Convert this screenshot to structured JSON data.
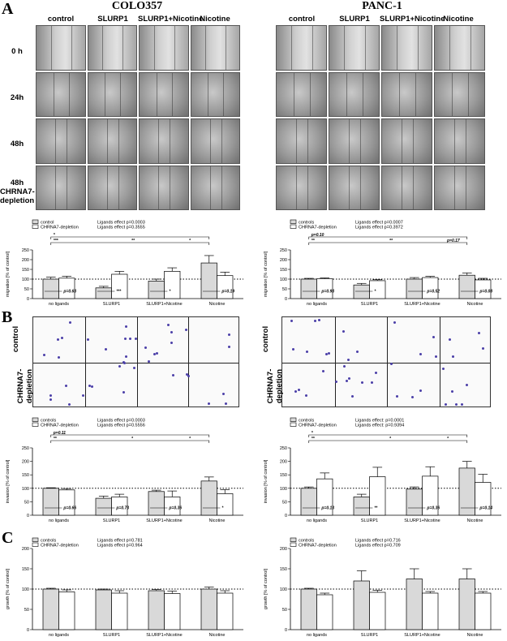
{
  "panels": {
    "a": "A",
    "b": "B",
    "c": "C"
  },
  "a_titles": {
    "left": "COLO357",
    "right": "PANC-1"
  },
  "a_columns": [
    "control",
    "SLURP1",
    "SLURP1+Nicotine",
    "Nicotine"
  ],
  "a_rows": [
    "0 h",
    "24h",
    "48h",
    "48h CHRNA7-depletion"
  ],
  "b_rows": [
    "control",
    "CHRNA7-depletion"
  ],
  "chart_data": [
    {
      "type": "bar",
      "panel": "A",
      "cell_line": "COLO357",
      "ylabel": "migration [% of control]",
      "ylim": [
        0,
        250
      ],
      "yticks": [
        0,
        50,
        100,
        150,
        200,
        250
      ],
      "reference_line": 100,
      "categories": [
        "no ligands",
        "SLURP1",
        "SLURP1+Nicotine",
        "Nicotine"
      ],
      "legend": [
        "control",
        "CHRNA7-depletion"
      ],
      "legend_notes": [
        "Ligands effect p=0.0003",
        "Ligands effect p=0.3555"
      ],
      "series": [
        {
          "name": "control",
          "values": [
            100,
            55,
            90,
            183
          ],
          "errors": [
            10,
            8,
            10,
            38
          ]
        },
        {
          "name": "CHRNA7-depletion",
          "values": [
            105,
            125,
            140,
            118
          ],
          "errors": [
            10,
            15,
            18,
            18
          ]
        }
      ],
      "pair_labels": [
        "p=0.63",
        "***",
        "*",
        "p=0.19"
      ],
      "brackets": [
        {
          "from": 0,
          "to": 3,
          "level": 1,
          "labels": [
            "*"
          ]
        },
        {
          "from": 0,
          "to": 3,
          "level": 2,
          "labels": [
            "***",
            "**",
            "*"
          ]
        }
      ]
    },
    {
      "type": "bar",
      "panel": "A",
      "cell_line": "PANC-1",
      "ylabel": "migration [% of control]",
      "ylim": [
        0,
        250
      ],
      "yticks": [
        0,
        50,
        100,
        150,
        200,
        250
      ],
      "reference_line": 100,
      "categories": [
        "no ligands",
        "SLURP1",
        "SLURP1+Nicotine",
        "Nicotine"
      ],
      "legend": [
        "controls",
        "CHRNA7-depletion"
      ],
      "legend_notes": [
        "Ligands effect p=0.0007",
        "Ligands effect p=0.3972"
      ],
      "series": [
        {
          "name": "controls",
          "values": [
            100,
            70,
            100,
            120
          ],
          "errors": [
            4,
            8,
            8,
            12
          ]
        },
        {
          "name": "CHRNA7-depletion",
          "values": [
            102,
            92,
            108,
            96
          ],
          "errors": [
            4,
            5,
            6,
            8
          ]
        }
      ],
      "pair_labels": [
        "p=0.93",
        "*",
        "p=0.52",
        "p=0.08"
      ],
      "brackets": [
        {
          "from": 0,
          "to": 3,
          "level": 1,
          "labels": [
            "p=0.10"
          ]
        },
        {
          "from": 0,
          "to": 3,
          "level": 2,
          "labels": [
            "**",
            "**",
            "p=0.17"
          ]
        }
      ]
    },
    {
      "type": "bar",
      "panel": "B",
      "cell_line": "COLO357",
      "ylabel": "invasion [% of control]",
      "ylim": [
        0,
        250
      ],
      "yticks": [
        0,
        50,
        100,
        150,
        200,
        250
      ],
      "reference_line": 100,
      "categories": [
        "no ligands",
        "SLURP1",
        "SLURP1+Nicotine",
        "Nicotine"
      ],
      "legend": [
        "controls",
        "CHRNA7-depletion"
      ],
      "legend_notes": [
        "Ligands effect p=0.0003",
        "Ligands effect p=0.5556"
      ],
      "series": [
        {
          "name": "controls",
          "values": [
            100,
            63,
            88,
            127
          ],
          "errors": [
            2,
            8,
            5,
            15
          ]
        },
        {
          "name": "CHRNA7-depletion",
          "values": [
            94,
            68,
            68,
            80
          ],
          "errors": [
            5,
            10,
            22,
            15
          ]
        }
      ],
      "pair_labels": [
        "p=0.66",
        "p=0.73",
        "p=0.36",
        "*"
      ],
      "brackets": [
        {
          "from": 0,
          "to": 3,
          "level": 1,
          "labels": [
            "p=0.11"
          ]
        },
        {
          "from": 0,
          "to": 3,
          "level": 2,
          "labels": [
            "**",
            "*",
            "*"
          ]
        }
      ]
    },
    {
      "type": "bar",
      "panel": "B",
      "cell_line": "PANC-1",
      "ylabel": "invasion [% of control]",
      "ylim": [
        0,
        250
      ],
      "yticks": [
        0,
        50,
        100,
        150,
        200,
        250
      ],
      "reference_line": 100,
      "categories": [
        "no ligands",
        "SLURP1",
        "SLURP1+Nicotine",
        "Nicotine"
      ],
      "legend": [
        "controls",
        "CHRNA7-depletion"
      ],
      "legend_notes": [
        "Ligands effect: p=0.0001",
        "Ligands effect: p=0.9394"
      ],
      "series": [
        {
          "name": "controls",
          "values": [
            100,
            68,
            97,
            175
          ],
          "errors": [
            5,
            10,
            8,
            25
          ]
        },
        {
          "name": "CHRNA7-depletion",
          "values": [
            135,
            143,
            145,
            122
          ],
          "errors": [
            22,
            35,
            35,
            30
          ]
        }
      ],
      "pair_labels": [
        "p=0.13",
        "**",
        "p=0.36",
        "p=0.14"
      ],
      "brackets": [
        {
          "from": 0,
          "to": 3,
          "level": 1,
          "labels": [
            "*"
          ]
        },
        {
          "from": 0,
          "to": 3,
          "level": 2,
          "labels": [
            "**",
            "*",
            "*"
          ]
        }
      ]
    },
    {
      "type": "bar",
      "panel": "C",
      "cell_line": "COLO357",
      "ylabel": "growth [% of control]",
      "ylim": [
        0,
        200
      ],
      "yticks": [
        0,
        50,
        100,
        150,
        200
      ],
      "reference_line": 100,
      "categories": [
        "no ligands",
        "SLURP1",
        "SLURP1+Nicotine",
        "Nicotine"
      ],
      "legend": [
        "controls",
        "CHRNA7-depletion"
      ],
      "legend_notes": [
        "Ligands effect p=0.781",
        "Ligands effect p=0.964"
      ],
      "series": [
        {
          "name": "controls",
          "values": [
            100,
            98,
            96,
            100
          ],
          "errors": [
            2,
            2,
            3,
            5
          ]
        },
        {
          "name": "CHRNA7-depletion",
          "values": [
            93,
            90,
            89,
            90
          ],
          "errors": [
            5,
            6,
            6,
            6
          ]
        }
      ],
      "pair_labels": [],
      "brackets": []
    },
    {
      "type": "bar",
      "panel": "C",
      "cell_line": "PANC-1",
      "ylabel": "growth [% of control]",
      "ylim": [
        0,
        200
      ],
      "yticks": [
        0,
        50,
        100,
        150,
        200
      ],
      "reference_line": 100,
      "categories": [
        "no ligands",
        "SLURP1",
        "SLURP1+Nicotine",
        "Nicotine"
      ],
      "legend": [
        "controls",
        "CHRNA7-depletion"
      ],
      "legend_notes": [
        "Ligands effect p=0.716",
        "Ligands effect p=0.709"
      ],
      "series": [
        {
          "name": "controls",
          "values": [
            100,
            120,
            125,
            125
          ],
          "errors": [
            2,
            25,
            25,
            25
          ]
        },
        {
          "name": "CHRNA7-depletion",
          "values": [
            86,
            92,
            90,
            90
          ],
          "errors": [
            4,
            5,
            4,
            4
          ]
        }
      ],
      "pair_labels": [],
      "brackets": []
    }
  ]
}
